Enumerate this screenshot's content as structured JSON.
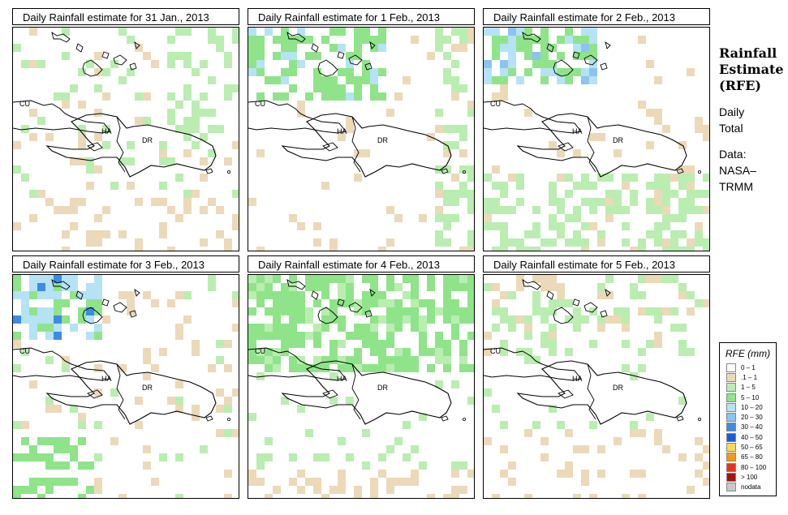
{
  "panels": [
    {
      "title": "Daily Rainfall estimate for  31 Jan., 2013"
    },
    {
      "title": "Daily Rainfall estimate for  1 Feb., 2013"
    },
    {
      "title": "Daily Rainfall estimate for  2 Feb., 2013"
    },
    {
      "title": "Daily Rainfall estimate for  3 Feb., 2013"
    },
    {
      "title": "Daily Rainfall estimate for  4 Feb., 2013"
    },
    {
      "title": "Daily Rainfall estimate for  5 Feb., 2013"
    }
  ],
  "map_labels": {
    "cuba": "CU",
    "haiti": "HA",
    "dominican_republic": "DR"
  },
  "side": {
    "title": [
      "Rainfall",
      "Estimate",
      "(RFE)"
    ],
    "period": [
      "Daily",
      "Total"
    ],
    "source": [
      "Data:",
      "NASA–",
      "TRMM"
    ]
  },
  "legend": {
    "title": "RFE (mm)",
    "items": [
      {
        "label": "0 – 1",
        "color": "#ffffff"
      },
      {
        "label": ".1 – 1",
        "color": "#ecd9b8"
      },
      {
        "label": "1 – 5",
        "color": "#b9eeb0"
      },
      {
        "label": "5 – 10",
        "color": "#8fe48a"
      },
      {
        "label": "10 – 20",
        "color": "#b5e3f5"
      },
      {
        "label": "20 – 30",
        "color": "#8cc3f0"
      },
      {
        "label": "30 – 40",
        "color": "#3c8ce6"
      },
      {
        "label": "40 – 50",
        "color": "#1f5ad8"
      },
      {
        "label": "50 – 65",
        "color": "#f5dc50"
      },
      {
        "label": "65 – 80",
        "color": "#f59a14"
      },
      {
        "label": "80 – 100",
        "color": "#e8321e"
      },
      {
        "label": "> 100",
        "color": "#a51414"
      },
      {
        "label": "nodata",
        "color": "#c8c8c8"
      }
    ]
  }
}
